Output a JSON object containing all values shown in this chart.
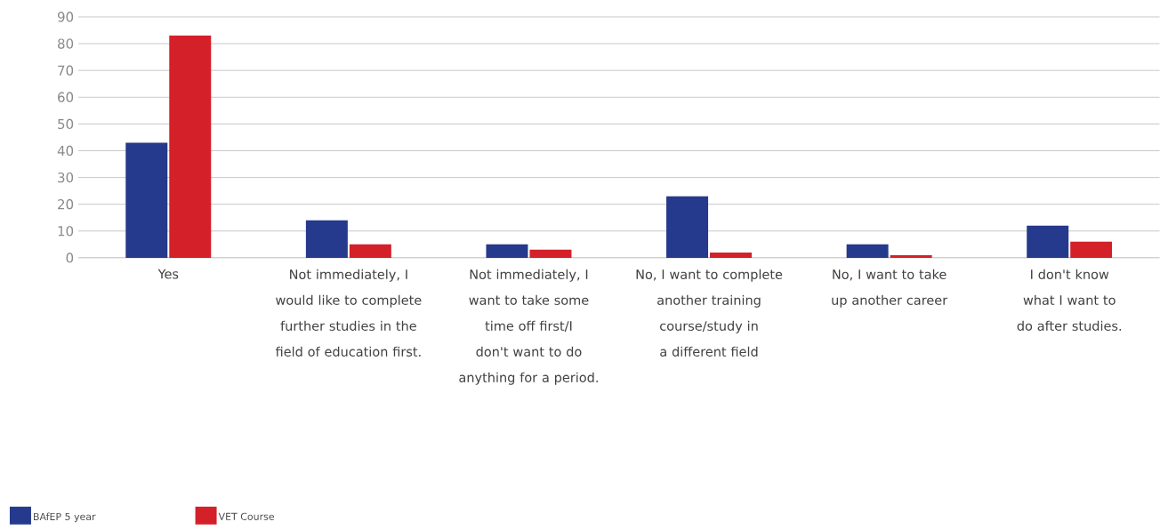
{
  "chart_data": {
    "type": "bar",
    "categories": [
      "Yes",
      "Not immediately, I would like to complete further studies in the field of education first.",
      "Not immediately, I want to take some time off first/I don't want to do anything for a period.",
      "No, I want to complete another training course/study in a different field",
      "No, I want to take up another career",
      "I don't know what I want to do after studies."
    ],
    "series": [
      {
        "name": "BAfEP 5 year",
        "color": "#253a8c",
        "values": [
          43,
          14,
          5,
          23,
          5,
          12
        ]
      },
      {
        "name": "VET Course",
        "color": "#d32029",
        "values": [
          83,
          5,
          3,
          2,
          1,
          6
        ]
      }
    ],
    "ylim": [
      0,
      90
    ],
    "yticks": [
      0,
      10,
      20,
      30,
      40,
      50,
      60,
      70,
      80,
      90
    ],
    "grid": "y",
    "legend": "bottom left"
  }
}
